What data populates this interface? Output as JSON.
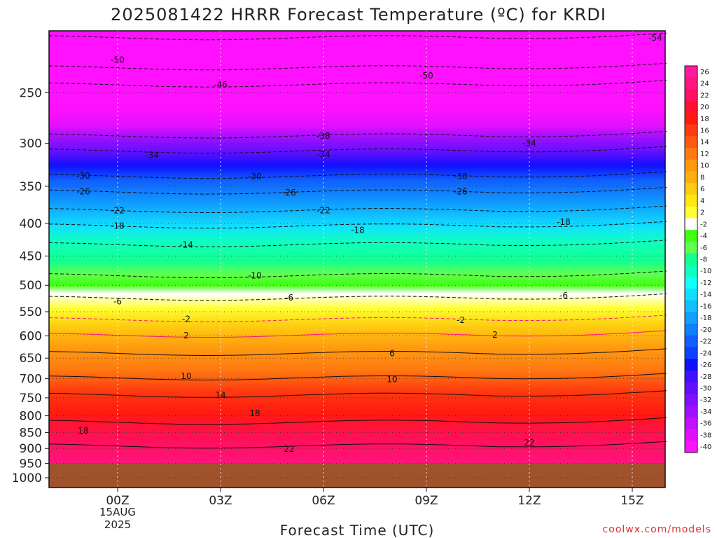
{
  "chart_data": {
    "type": "heatmap",
    "title": "2025081422 HRRR Forecast Temperature (ºC) for KRDI",
    "xlabel": "Forecast Time (UTC)",
    "ylabel": "",
    "x_ticks": [
      "00Z",
      "03Z",
      "06Z",
      "09Z",
      "12Z",
      "15Z"
    ],
    "x_date_lines": [
      "15AUG",
      "2025"
    ],
    "y_ticks": [
      250,
      300,
      350,
      400,
      450,
      500,
      550,
      600,
      650,
      700,
      750,
      800,
      850,
      900,
      950,
      1000
    ],
    "y_range_hPa": [
      200,
      1000
    ],
    "surface_pressure_hPa": 965,
    "colorbar_ticks": [
      26,
      24,
      22,
      20,
      18,
      16,
      14,
      12,
      10,
      8,
      6,
      4,
      2,
      -2,
      -4,
      -6,
      -8,
      -10,
      -12,
      -14,
      -16,
      -18,
      -20,
      -22,
      -24,
      -26,
      -28,
      -30,
      -32,
      -34,
      -36,
      -38,
      -40
    ],
    "colorbar_colors": [
      "#ff1aa0",
      "#ff1480",
      "#ff1060",
      "#ff1030",
      "#ff1a10",
      "#ff3a10",
      "#ff5a10",
      "#ff7a10",
      "#ff9a10",
      "#ffb010",
      "#ffcc10",
      "#ffe810",
      "#ffff30",
      "#ffffff",
      "#40ff10",
      "#60ff50",
      "#10ff90",
      "#10ffc0",
      "#10ffff",
      "#10e0ff",
      "#10c0ff",
      "#10a0ff",
      "#1080ff",
      "#1060ff",
      "#1040ff",
      "#1010ff",
      "#4010ff",
      "#6010ff",
      "#8010ff",
      "#a010ff",
      "#c010ff",
      "#e010ff",
      "#ff10ff"
    ],
    "contour_labels": [
      {
        "value": "-54",
        "time_h": 17.5,
        "p": 205
      },
      {
        "value": "-50",
        "time_h": 0.0,
        "p": 222
      },
      {
        "value": "-50",
        "time_h": 9.0,
        "p": 235
      },
      {
        "value": "-46",
        "time_h": 3.0,
        "p": 243
      },
      {
        "value": "-38",
        "time_h": 6.0,
        "p": 292
      },
      {
        "value": "-34",
        "time_h": 1.0,
        "p": 313
      },
      {
        "value": "-34",
        "time_h": 6.0,
        "p": 312
      },
      {
        "value": "-34",
        "time_h": 12.0,
        "p": 300
      },
      {
        "value": "-30",
        "time_h": -1.0,
        "p": 337
      },
      {
        "value": "-30",
        "time_h": 4.0,
        "p": 338
      },
      {
        "value": "-30",
        "time_h": 10.0,
        "p": 338
      },
      {
        "value": "-26",
        "time_h": -1.0,
        "p": 357
      },
      {
        "value": "-26",
        "time_h": 5.0,
        "p": 358
      },
      {
        "value": "-26",
        "time_h": 10.0,
        "p": 357
      },
      {
        "value": "-22",
        "time_h": 0.0,
        "p": 382
      },
      {
        "value": "-22",
        "time_h": 6.0,
        "p": 382
      },
      {
        "value": "-18",
        "time_h": 0.0,
        "p": 404
      },
      {
        "value": "-18",
        "time_h": 7.0,
        "p": 410
      },
      {
        "value": "-18",
        "time_h": 13.0,
        "p": 398
      },
      {
        "value": "-14",
        "time_h": 2.0,
        "p": 432
      },
      {
        "value": "-10",
        "time_h": 4.0,
        "p": 483
      },
      {
        "value": "-6",
        "time_h": 0.0,
        "p": 530
      },
      {
        "value": "-6",
        "time_h": 5.0,
        "p": 523
      },
      {
        "value": "-6",
        "time_h": 13.0,
        "p": 519
      },
      {
        "value": "-2",
        "time_h": 2.0,
        "p": 565
      },
      {
        "value": "-2",
        "time_h": 10.0,
        "p": 567
      },
      {
        "value": "2",
        "time_h": 2.0,
        "p": 599
      },
      {
        "value": "2",
        "time_h": 11.0,
        "p": 598
      },
      {
        "value": "6",
        "time_h": 8.0,
        "p": 639
      },
      {
        "value": "10",
        "time_h": 2.0,
        "p": 694
      },
      {
        "value": "10",
        "time_h": 8.0,
        "p": 702
      },
      {
        "value": "14",
        "time_h": 3.0,
        "p": 743
      },
      {
        "value": "18",
        "time_h": -1.0,
        "p": 845
      },
      {
        "value": "18",
        "time_h": 4.0,
        "p": 793
      },
      {
        "value": "22",
        "time_h": 5.0,
        "p": 902
      },
      {
        "value": "22",
        "time_h": 12.0,
        "p": 882
      }
    ],
    "grid": true
  },
  "credit": "coolwx.com/models"
}
